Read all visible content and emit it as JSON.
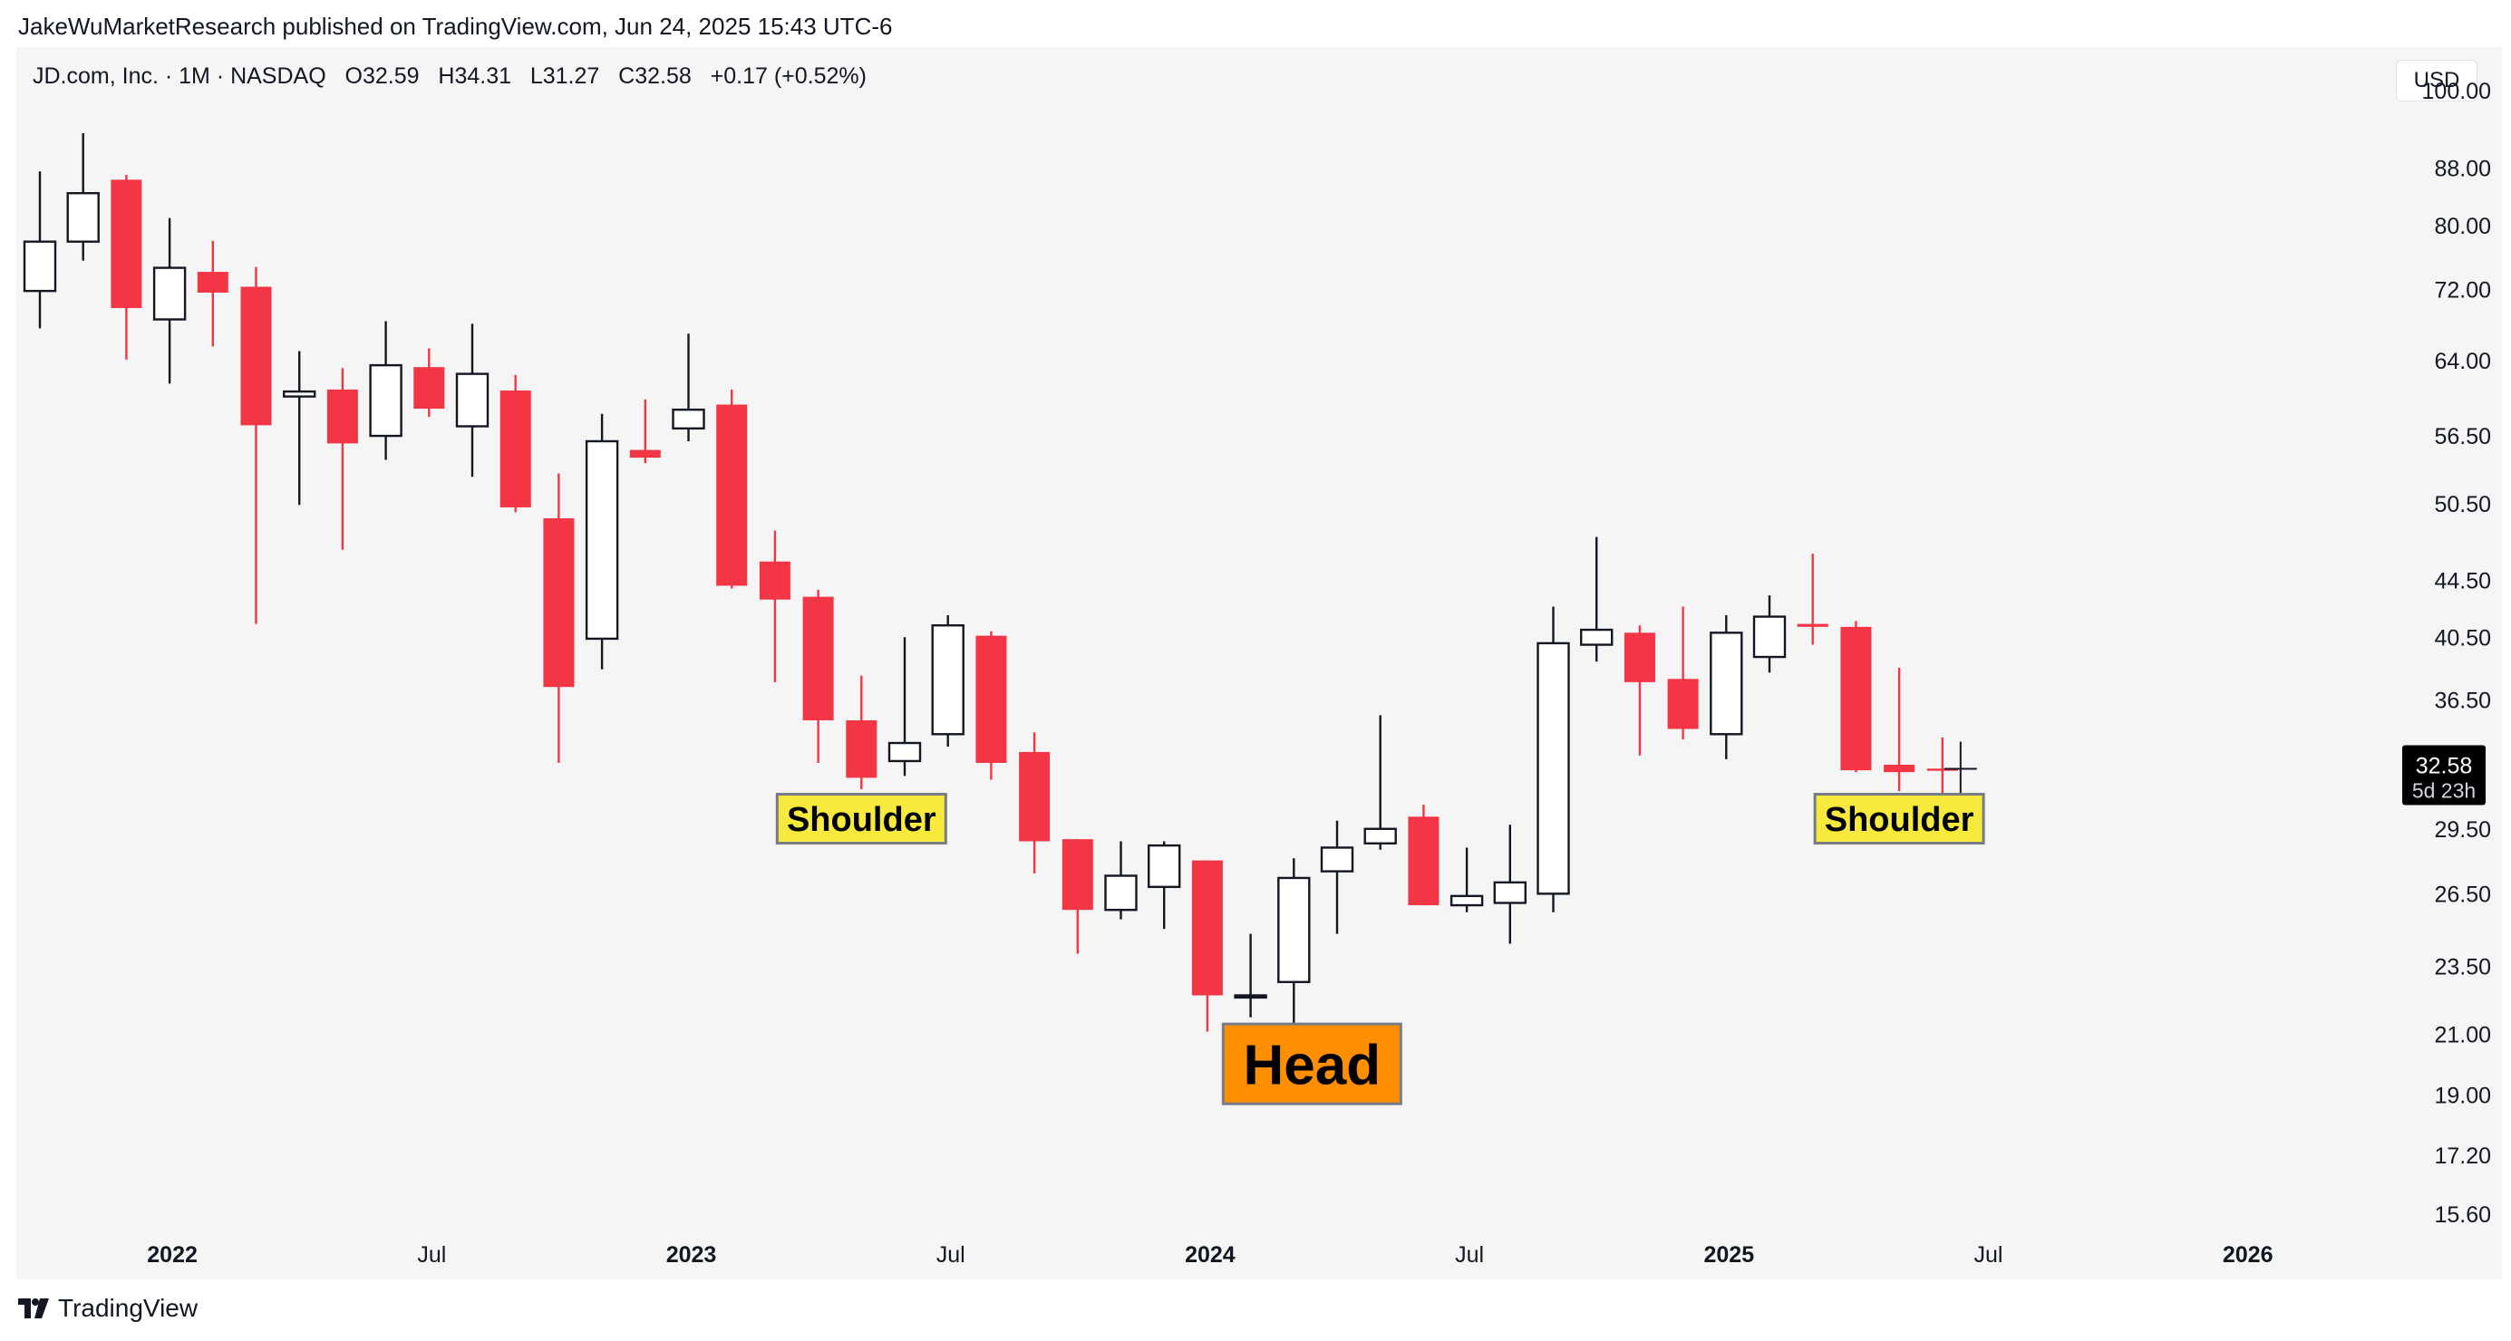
{
  "header": {
    "published_line": "JakeWuMarketResearch published on TradingView.com, Jun 24, 2025 15:43 UTC-6"
  },
  "symbol": {
    "name": "JD.com, Inc. · 1M · NASDAQ",
    "open_label": "O",
    "open": "32.59",
    "high_label": "H",
    "high": "34.31",
    "low_label": "L",
    "low": "31.27",
    "close_label": "C",
    "close": "32.58",
    "change": "+0.17 (+0.52%)"
  },
  "currency": "USD",
  "price_tag": {
    "price": "32.58",
    "countdown": "5d 23h"
  },
  "footer": {
    "brand": "TradingView"
  },
  "colors": {
    "bear": "#f23645",
    "bull_fill": "#ffffff",
    "bull_border": "#131722",
    "shoulder_bg": "#f7ea3d",
    "head_bg": "#ff8f00",
    "label_border": "#787b86"
  },
  "chart_data": {
    "type": "candlestick",
    "title": "JD.com, Inc. · 1M · NASDAQ",
    "scale": "logarithmic",
    "y_ticks": [
      "100.00",
      "88.00",
      "80.00",
      "72.00",
      "64.00",
      "56.50",
      "50.50",
      "44.50",
      "40.50",
      "36.50",
      "29.50",
      "26.50",
      "23.50",
      "21.00",
      "19.00",
      "17.20",
      "15.60"
    ],
    "x_ticks": [
      {
        "label": "2022",
        "index": 3
      },
      {
        "label": "Jul",
        "index": 9
      },
      {
        "label": "2023",
        "index": 15
      },
      {
        "label": "Jul",
        "index": 21
      },
      {
        "label": "2024",
        "index": 27
      },
      {
        "label": "Jul",
        "index": 33
      },
      {
        "label": "2025",
        "index": 39
      },
      {
        "label": "Jul",
        "index": 45
      },
      {
        "label": "2026",
        "index": 51
      }
    ],
    "candles": [
      {
        "o": 71.8,
        "h": 87.5,
        "l": 67.5,
        "c": 77.9
      },
      {
        "o": 77.9,
        "h": 93.2,
        "l": 75.5,
        "c": 84.4
      },
      {
        "o": 86.3,
        "h": 87.0,
        "l": 64.1,
        "c": 69.8
      },
      {
        "o": 68.5,
        "h": 81.0,
        "l": 61.6,
        "c": 74.6
      },
      {
        "o": 74.1,
        "h": 78.0,
        "l": 65.5,
        "c": 71.6
      },
      {
        "o": 72.3,
        "h": 74.7,
        "l": 41.4,
        "c": 57.5
      },
      {
        "o": 60.3,
        "h": 65.0,
        "l": 50.4,
        "c": 60.8
      },
      {
        "o": 61.0,
        "h": 63.2,
        "l": 46.8,
        "c": 55.8
      },
      {
        "o": 56.5,
        "h": 68.3,
        "l": 54.3,
        "c": 63.5
      },
      {
        "o": 63.3,
        "h": 65.3,
        "l": 58.3,
        "c": 59.1
      },
      {
        "o": 57.4,
        "h": 68.0,
        "l": 52.8,
        "c": 62.6
      },
      {
        "o": 60.9,
        "h": 62.5,
        "l": 49.8,
        "c": 50.2
      },
      {
        "o": 49.3,
        "h": 53.1,
        "l": 32.9,
        "c": 37.3
      },
      {
        "o": 40.4,
        "h": 58.6,
        "l": 38.4,
        "c": 56.0
      },
      {
        "o": 55.2,
        "h": 60.0,
        "l": 54.0,
        "c": 54.5
      },
      {
        "o": 57.2,
        "h": 66.9,
        "l": 56.0,
        "c": 59.0
      },
      {
        "o": 59.5,
        "h": 61.0,
        "l": 43.9,
        "c": 44.1
      },
      {
        "o": 45.9,
        "h": 48.3,
        "l": 37.6,
        "c": 43.1
      },
      {
        "o": 43.3,
        "h": 43.8,
        "l": 32.9,
        "c": 35.3
      },
      {
        "o": 35.3,
        "h": 38.0,
        "l": 31.5,
        "c": 32.1
      },
      {
        "o": 33.0,
        "h": 40.5,
        "l": 32.2,
        "c": 34.0
      },
      {
        "o": 34.5,
        "h": 42.0,
        "l": 33.8,
        "c": 41.3
      },
      {
        "o": 40.6,
        "h": 40.9,
        "l": 32.0,
        "c": 32.9
      },
      {
        "o": 33.5,
        "h": 34.6,
        "l": 27.4,
        "c": 28.9
      },
      {
        "o": 29.0,
        "h": 29.0,
        "l": 24.0,
        "c": 25.8
      },
      {
        "o": 25.8,
        "h": 28.9,
        "l": 25.4,
        "c": 27.3
      },
      {
        "o": 26.8,
        "h": 28.9,
        "l": 25.0,
        "c": 28.7
      },
      {
        "o": 28.0,
        "h": 28.0,
        "l": 21.1,
        "c": 22.4
      },
      {
        "o": 22.4,
        "h": 24.8,
        "l": 21.6,
        "c": 22.4
      },
      {
        "o": 22.9,
        "h": 28.1,
        "l": 21.4,
        "c": 27.2
      },
      {
        "o": 27.5,
        "h": 29.9,
        "l": 24.8,
        "c": 28.6
      },
      {
        "o": 28.8,
        "h": 35.6,
        "l": 28.5,
        "c": 29.5
      },
      {
        "o": 30.1,
        "h": 30.7,
        "l": 26.0,
        "c": 26.0
      },
      {
        "o": 26.0,
        "h": 28.6,
        "l": 25.7,
        "c": 26.4
      },
      {
        "o": 26.1,
        "h": 29.7,
        "l": 24.4,
        "c": 27.0
      },
      {
        "o": 26.5,
        "h": 42.6,
        "l": 25.7,
        "c": 40.1
      },
      {
        "o": 40.0,
        "h": 47.8,
        "l": 38.9,
        "c": 41.0
      },
      {
        "o": 40.8,
        "h": 41.3,
        "l": 33.3,
        "c": 37.6
      },
      {
        "o": 37.8,
        "h": 42.6,
        "l": 34.2,
        "c": 34.8
      },
      {
        "o": 34.5,
        "h": 42.0,
        "l": 33.1,
        "c": 40.8
      },
      {
        "o": 39.2,
        "h": 43.4,
        "l": 38.2,
        "c": 41.9
      },
      {
        "o": 41.4,
        "h": 46.5,
        "l": 40.0,
        "c": 41.2
      },
      {
        "o": 41.2,
        "h": 41.6,
        "l": 32.4,
        "c": 32.5
      },
      {
        "o": 32.8,
        "h": 38.5,
        "l": 31.4,
        "c": 32.4
      },
      {
        "o": 32.59,
        "h": 34.31,
        "l": 31.27,
        "c": 32.58
      }
    ],
    "annotations": [
      {
        "text": "Shoulder",
        "candle_index": 19,
        "price": 30.0,
        "style": "shoulder"
      },
      {
        "text": "Head",
        "candle_index": 29,
        "price": 20.0,
        "style": "head"
      },
      {
        "text": "Shoulder",
        "candle_index": 43,
        "price": 30.0,
        "style": "shoulder"
      }
    ]
  }
}
